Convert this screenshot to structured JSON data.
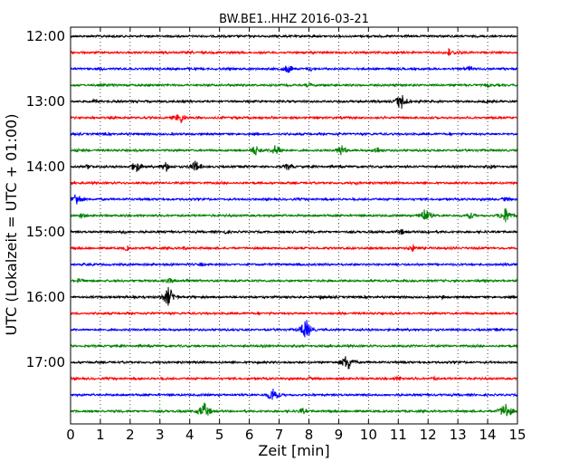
{
  "chart_data": {
    "type": "line",
    "title": "BW.BE1..HHZ 2016-03-21",
    "xlabel": "Zeit  [min]",
    "ylabel": "UTC (Lokalzeit = UTC + 01:00)",
    "xlim": [
      0,
      15
    ],
    "x_ticks": [
      "0",
      "1",
      "2",
      "3",
      "4",
      "5",
      "6",
      "7",
      "8",
      "9",
      "10",
      "11",
      "12",
      "13",
      "14",
      "15"
    ],
    "y_ticks": [
      "12:00",
      "13:00",
      "14:00",
      "15:00",
      "16:00",
      "17:00"
    ],
    "grid": "vertical dotted",
    "trace_interval": "15 min",
    "start": "12:00",
    "end": "18:00",
    "colors": [
      "#000000",
      "#ff0000",
      "#0000ff",
      "#008000"
    ],
    "traces": [
      {
        "start": "12:00",
        "events": [
          [
            1.5,
            0.25
          ],
          [
            4.3,
            0.15
          ],
          [
            12.9,
            0.2
          ]
        ]
      },
      {
        "start": "12:15",
        "events": [
          [
            12.7,
            0.6
          ],
          [
            13.0,
            0.4
          ],
          [
            0.2,
            0.15
          ]
        ]
      },
      {
        "start": "12:30",
        "events": [
          [
            7.3,
            0.7
          ],
          [
            8.1,
            0.4
          ],
          [
            13.4,
            0.5
          ]
        ]
      },
      {
        "start": "12:45",
        "events": [
          [
            8.0,
            0.4
          ],
          [
            14.0,
            0.3
          ]
        ]
      },
      {
        "start": "13:00",
        "events": [
          [
            0.8,
            0.3
          ],
          [
            11.1,
            1.3
          ],
          [
            14.0,
            0.3
          ]
        ]
      },
      {
        "start": "13:15",
        "events": [
          [
            3.7,
            0.9
          ],
          [
            3.5,
            0.4
          ]
        ]
      },
      {
        "start": "13:30",
        "events": [
          [
            1.2,
            0.2
          ],
          [
            9.0,
            0.2
          ]
        ]
      },
      {
        "start": "13:45",
        "events": [
          [
            0.3,
            0.3
          ],
          [
            6.2,
            0.9
          ],
          [
            6.9,
            0.9
          ],
          [
            9.1,
            0.9
          ],
          [
            10.3,
            0.6
          ]
        ]
      },
      {
        "start": "14:00",
        "events": [
          [
            0.6,
            0.4
          ],
          [
            2.2,
            0.9
          ],
          [
            3.2,
            0.8
          ],
          [
            4.2,
            0.9
          ],
          [
            7.3,
            0.6
          ],
          [
            14.1,
            0.3
          ]
        ]
      },
      {
        "start": "14:15",
        "events": [
          [
            9.6,
            0.3
          ],
          [
            11.0,
            0.2
          ]
        ]
      },
      {
        "start": "14:30",
        "events": [
          [
            0.2,
            1.1
          ],
          [
            14.6,
            0.4
          ]
        ]
      },
      {
        "start": "14:45",
        "events": [
          [
            0.4,
            0.4
          ],
          [
            11.9,
            1.1
          ],
          [
            13.4,
            0.6
          ],
          [
            14.6,
            1.2
          ]
        ]
      },
      {
        "start": "15:00",
        "events": [
          [
            1.8,
            0.3
          ],
          [
            5.2,
            0.3
          ],
          [
            7.5,
            0.3
          ],
          [
            11.1,
            0.5
          ],
          [
            12.0,
            0.3
          ]
        ]
      },
      {
        "start": "15:15",
        "events": [
          [
            1.9,
            0.4
          ],
          [
            3.8,
            0.3
          ],
          [
            11.5,
            0.6
          ]
        ]
      },
      {
        "start": "15:30",
        "events": [
          [
            4.4,
            0.3
          ],
          [
            8.2,
            0.2
          ]
        ]
      },
      {
        "start": "15:45",
        "events": [
          [
            0.3,
            0.4
          ],
          [
            3.3,
            0.4
          ],
          [
            3.9,
            0.3
          ]
        ]
      },
      {
        "start": "16:00",
        "events": [
          [
            3.3,
            1.6
          ],
          [
            8.4,
            0.3
          ],
          [
            12.5,
            0.3
          ]
        ]
      },
      {
        "start": "16:15",
        "events": [
          [
            10.5,
            0.2
          ]
        ]
      },
      {
        "start": "16:30",
        "events": [
          [
            7.9,
            1.6
          ],
          [
            14.3,
            0.2
          ]
        ]
      },
      {
        "start": "16:45",
        "events": [
          [
            4.8,
            0.2
          ]
        ]
      },
      {
        "start": "17:00",
        "events": [
          [
            9.3,
            1.4
          ],
          [
            6.3,
            0.2
          ]
        ]
      },
      {
        "start": "17:15",
        "events": [
          [
            8.0,
            0.3
          ],
          [
            11.0,
            0.4
          ],
          [
            12.2,
            0.3
          ]
        ]
      },
      {
        "start": "17:30",
        "events": [
          [
            6.8,
            1.2
          ],
          [
            4.6,
            0.2
          ]
        ]
      },
      {
        "start": "17:45",
        "events": [
          [
            4.5,
            1.3
          ],
          [
            7.8,
            0.5
          ],
          [
            14.6,
            1.4
          ]
        ]
      }
    ]
  }
}
